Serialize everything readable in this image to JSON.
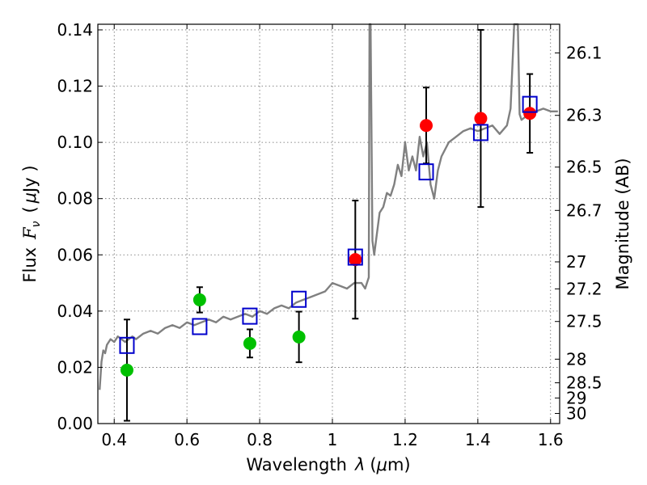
{
  "chart_data": {
    "type": "scatter",
    "xlabel": "Wavelength",
    "xlabel_symbol": "λ",
    "xlabel_unit_open": "(",
    "xlabel_unit_mu": "μ",
    "xlabel_unit_rest": "m)",
    "ylabel": "Flux",
    "ylabel_symbol": "F",
    "ylabel_sub": "ν",
    "ylabel_unit_open": "(",
    "ylabel_unit_mu": "μ",
    "ylabel_unit_rest": "Jy )",
    "y2label": "Magnitude (AB)",
    "xlim": [
      0.355,
      1.625
    ],
    "ylim": [
      0.0,
      0.142
    ],
    "xticks": [
      0.4,
      0.6,
      0.8,
      1.0,
      1.2,
      1.4,
      1.6
    ],
    "xtick_labels": [
      "0.4",
      "0.6",
      "0.8",
      "1",
      "1.2",
      "1.4",
      "1.6"
    ],
    "yticks": [
      0.0,
      0.02,
      0.04,
      0.06,
      0.08,
      0.1,
      0.12,
      0.14
    ],
    "ytick_labels": [
      "0.00",
      "0.02",
      "0.04",
      "0.06",
      "0.08",
      "0.10",
      "0.12",
      "0.14"
    ],
    "y2ticks": [
      {
        "label": "26.1",
        "flux": 0.1318
      },
      {
        "label": "26.3",
        "flux": 0.1096
      },
      {
        "label": "26.5",
        "flux": 0.0912
      },
      {
        "label": "26.7",
        "flux": 0.0758
      },
      {
        "label": "27",
        "flux": 0.0575
      },
      {
        "label": "27.2",
        "flux": 0.0479
      },
      {
        "label": "27.5",
        "flux": 0.0363
      },
      {
        "label": "28",
        "flux": 0.0229
      },
      {
        "label": "28.5",
        "flux": 0.0145
      },
      {
        "label": "29",
        "flux": 0.0091
      },
      {
        "label": "30",
        "flux": 0.0036
      }
    ],
    "grid": true,
    "spectrum": {
      "color": "#808080",
      "x": [
        0.36,
        0.365,
        0.37,
        0.375,
        0.38,
        0.39,
        0.4,
        0.41,
        0.42,
        0.43,
        0.44,
        0.45,
        0.46,
        0.48,
        0.5,
        0.52,
        0.54,
        0.56,
        0.58,
        0.6,
        0.62,
        0.64,
        0.66,
        0.68,
        0.7,
        0.72,
        0.74,
        0.76,
        0.78,
        0.8,
        0.82,
        0.84,
        0.86,
        0.88,
        0.9,
        0.92,
        0.94,
        0.96,
        0.98,
        1.0,
        1.02,
        1.04,
        1.06,
        1.08,
        1.09,
        1.095,
        1.1,
        1.102,
        1.105,
        1.11,
        1.115,
        1.12,
        1.13,
        1.14,
        1.15,
        1.16,
        1.17,
        1.18,
        1.19,
        1.2,
        1.21,
        1.22,
        1.23,
        1.24,
        1.25,
        1.26,
        1.27,
        1.28,
        1.29,
        1.3,
        1.32,
        1.34,
        1.36,
        1.38,
        1.4,
        1.42,
        1.44,
        1.46,
        1.48,
        1.49,
        1.5,
        1.51,
        1.515,
        1.52,
        1.53,
        1.54,
        1.56,
        1.58,
        1.6,
        1.62
      ],
      "y": [
        0.012,
        0.022,
        0.026,
        0.025,
        0.028,
        0.03,
        0.029,
        0.031,
        0.03,
        0.029,
        0.03,
        0.031,
        0.03,
        0.032,
        0.033,
        0.032,
        0.034,
        0.035,
        0.034,
        0.036,
        0.035,
        0.036,
        0.037,
        0.036,
        0.038,
        0.037,
        0.038,
        0.039,
        0.038,
        0.04,
        0.039,
        0.041,
        0.042,
        0.041,
        0.043,
        0.044,
        0.045,
        0.046,
        0.047,
        0.05,
        0.049,
        0.048,
        0.05,
        0.05,
        0.048,
        0.05,
        0.052,
        0.142,
        0.142,
        0.065,
        0.06,
        0.065,
        0.075,
        0.077,
        0.082,
        0.081,
        0.085,
        0.092,
        0.088,
        0.1,
        0.09,
        0.095,
        0.09,
        0.102,
        0.095,
        0.1,
        0.085,
        0.08,
        0.09,
        0.095,
        0.1,
        0.102,
        0.104,
        0.105,
        0.104,
        0.105,
        0.106,
        0.103,
        0.106,
        0.112,
        0.142,
        0.142,
        0.11,
        0.108,
        0.109,
        0.11,
        0.111,
        0.112,
        0.111,
        0.111
      ]
    },
    "series": [
      {
        "marker": "circle-green",
        "color": "#00c000",
        "points": [
          {
            "x": 0.435,
            "y": 0.019,
            "yerr": 0.018
          },
          {
            "x": 0.635,
            "y": 0.044,
            "yerr": 0.0045
          },
          {
            "x": 0.773,
            "y": 0.0285,
            "yerr": 0.005
          },
          {
            "x": 0.908,
            "y": 0.0308,
            "yerr": 0.009
          }
        ]
      },
      {
        "marker": "circle-red",
        "color": "#ff0000",
        "points": [
          {
            "x": 1.063,
            "y": 0.0583,
            "yerr": 0.021
          },
          {
            "x": 1.258,
            "y": 0.106,
            "yerr": 0.0135
          },
          {
            "x": 1.408,
            "y": 0.1085,
            "yerr": 0.0315
          },
          {
            "x": 1.543,
            "y": 0.1103,
            "yerr": 0.014
          }
        ]
      },
      {
        "marker": "square-blue",
        "color": "#0000cc",
        "points": [
          {
            "x": 0.435,
            "y": 0.0278
          },
          {
            "x": 0.635,
            "y": 0.0345
          },
          {
            "x": 0.773,
            "y": 0.0382
          },
          {
            "x": 0.908,
            "y": 0.0442
          },
          {
            "x": 1.063,
            "y": 0.0592
          },
          {
            "x": 1.258,
            "y": 0.0895
          },
          {
            "x": 1.408,
            "y": 0.1035
          },
          {
            "x": 1.543,
            "y": 0.1135
          }
        ]
      }
    ]
  }
}
